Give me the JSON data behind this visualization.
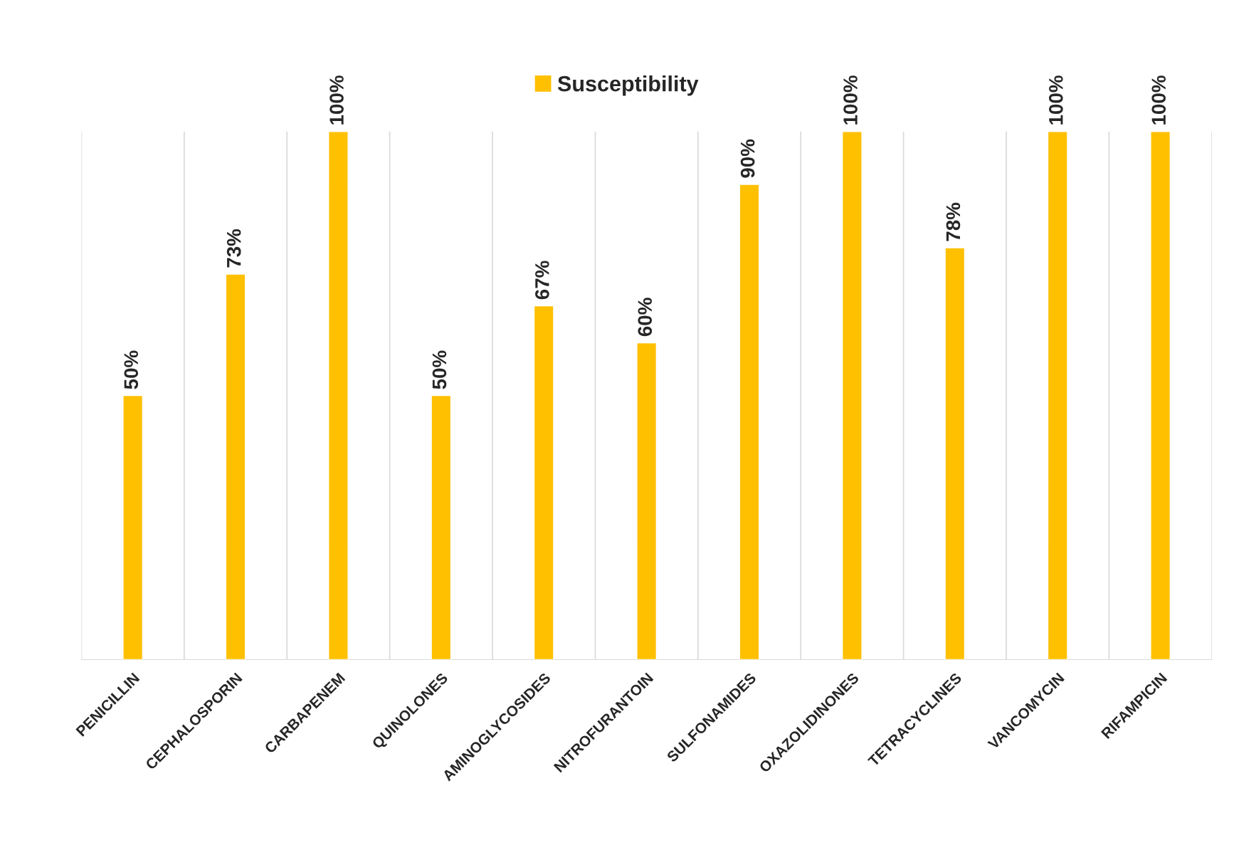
{
  "chart_data": {
    "type": "bar",
    "categories": [
      "PENICILLIN",
      "CEPHALOSPORIN",
      "CARBAPENEM",
      "QUINOLONES",
      "AMINOGLYCOSIDES",
      "NITROFURANTOIN",
      "SULFONAMIDES",
      "OXAZOLIDINONES",
      "TETRACYCLINES",
      "VANCOMYCIN",
      "RIFAMPICIN"
    ],
    "series": [
      {
        "name": "Susceptibility",
        "color": "#ffc000",
        "values": [
          50,
          73,
          100,
          50,
          67,
          60,
          90,
          100,
          78,
          100,
          100
        ],
        "value_labels": [
          "50%",
          "73%",
          "100%",
          "50%",
          "67%",
          "60%",
          "90%",
          "100%",
          "78%",
          "100%",
          "100%"
        ]
      }
    ],
    "grid": "x",
    "legend": "top"
  }
}
